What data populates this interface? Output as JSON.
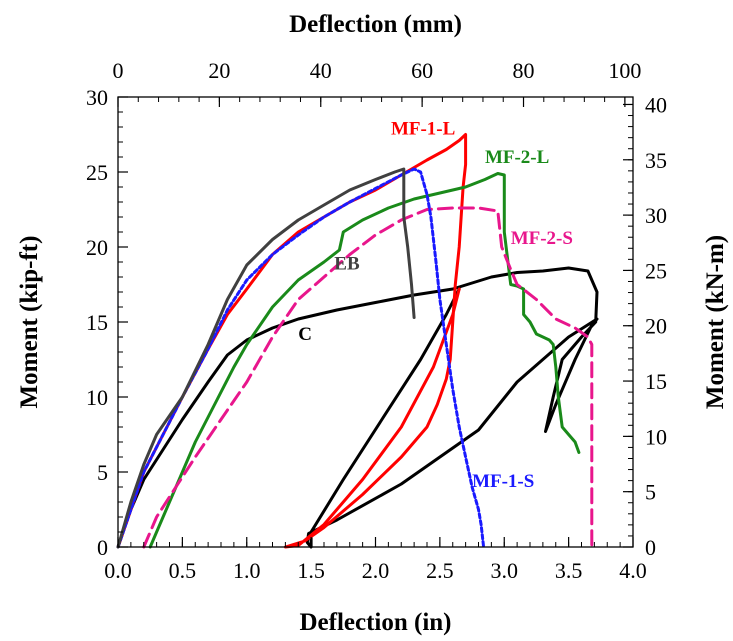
{
  "chart_data": {
    "type": "line",
    "xlabel": "Deflection (in)",
    "x2label": "Deflection (mm)",
    "ylabel": "Moment (kip-ft)",
    "y2label": "Moment (kN-m)",
    "xlim": [
      0,
      4
    ],
    "ylim": [
      0,
      30
    ],
    "x2lim": [
      0,
      101.6
    ],
    "y2lim": [
      0,
      40.675
    ],
    "xticks": [
      0,
      0.5,
      1,
      1.5,
      2,
      2.5,
      3,
      3.5,
      4
    ],
    "xtick_labels": [
      "0.0",
      "0.5",
      "1.0",
      "1.5",
      "2.0",
      "2.5",
      "3.0",
      "3.5",
      "4.0"
    ],
    "yticks": [
      0,
      5,
      10,
      15,
      20,
      25,
      30
    ],
    "ytick_labels": [
      "0",
      "5",
      "10",
      "15",
      "20",
      "25",
      "30"
    ],
    "x2ticks": [
      0,
      20,
      40,
      60,
      80,
      100
    ],
    "x2tick_labels": [
      "0",
      "20",
      "40",
      "60",
      "80",
      "100"
    ],
    "y2ticks": [
      0,
      5,
      10,
      15,
      20,
      25,
      30,
      35,
      40
    ],
    "y2tick_labels": [
      "0",
      "5",
      "10",
      "15",
      "20",
      "25",
      "30",
      "35",
      "40"
    ],
    "grid": false,
    "legend": "none",
    "series": [
      {
        "name": "C",
        "color": "#000000",
        "style": "solid",
        "points": [
          [
            0,
            0
          ],
          [
            0.1,
            2.5
          ],
          [
            0.2,
            4.5
          ],
          [
            0.35,
            6.5
          ],
          [
            0.5,
            8.5
          ],
          [
            0.7,
            11
          ],
          [
            0.85,
            12.8
          ],
          [
            1,
            13.8
          ],
          [
            1.2,
            14.6
          ],
          [
            1.4,
            15.2
          ],
          [
            1.7,
            15.8
          ],
          [
            2,
            16.3
          ],
          [
            2.3,
            16.8
          ],
          [
            2.6,
            17.2
          ],
          [
            2.9,
            18
          ],
          [
            3.1,
            18.3
          ],
          [
            3.3,
            18.4
          ],
          [
            3.5,
            18.6
          ],
          [
            3.65,
            18.4
          ],
          [
            3.72,
            17
          ],
          [
            3.71,
            15
          ],
          [
            3.6,
            14
          ],
          [
            3.45,
            12.5
          ],
          [
            3.38,
            10
          ],
          [
            3.32,
            7.7
          ],
          [
            3.4,
            9.5
          ],
          [
            3.55,
            12.5
          ],
          [
            3.68,
            14.8
          ],
          [
            3.72,
            15.2
          ],
          [
            3.5,
            14
          ],
          [
            3.1,
            11
          ],
          [
            2.8,
            7.8
          ],
          [
            2.2,
            4.2
          ],
          [
            1.7,
            1.8
          ],
          [
            1.48,
            0.9
          ],
          [
            1.47,
            0.3
          ],
          [
            1.5,
            0
          ],
          [
            1.5,
            1
          ],
          [
            1.75,
            4.5
          ],
          [
            2.05,
            8.5
          ],
          [
            2.35,
            12.5
          ],
          [
            2.55,
            15.5
          ],
          [
            2.65,
            17.2
          ]
        ]
      },
      {
        "name": "MF-1-L",
        "color": "#ff0000",
        "style": "solid",
        "points": [
          [
            0,
            0
          ],
          [
            0.1,
            2.5
          ],
          [
            0.2,
            5
          ],
          [
            0.35,
            7.5
          ],
          [
            0.5,
            10
          ],
          [
            0.7,
            13.2
          ],
          [
            0.85,
            15.5
          ],
          [
            1,
            17.2
          ],
          [
            1.2,
            19.5
          ],
          [
            1.4,
            21
          ],
          [
            1.6,
            22
          ],
          [
            1.8,
            23
          ],
          [
            2,
            23.8
          ],
          [
            2.2,
            24.8
          ],
          [
            2.4,
            25.8
          ],
          [
            2.55,
            26.5
          ],
          [
            2.65,
            27.1
          ],
          [
            2.7,
            27.5
          ],
          [
            2.7,
            25.5
          ],
          [
            2.68,
            24
          ],
          [
            2.65,
            20
          ],
          [
            2.62,
            17.5
          ],
          [
            2.58,
            12.5
          ],
          [
            2.55,
            11.2
          ],
          [
            2.48,
            9.5
          ],
          [
            2.4,
            8
          ],
          [
            2.2,
            6
          ],
          [
            1.9,
            3.5
          ],
          [
            1.6,
            1.3
          ],
          [
            1.45,
            0.4
          ],
          [
            1.3,
            0
          ],
          [
            1.4,
            0.1
          ],
          [
            1.6,
            1.5
          ],
          [
            1.9,
            4.5
          ],
          [
            2.2,
            8
          ],
          [
            2.45,
            12
          ],
          [
            2.6,
            15.5
          ],
          [
            2.65,
            17.2
          ]
        ]
      },
      {
        "name": "MF-2-L",
        "color": "#1a8a1a",
        "style": "solid",
        "points": [
          [
            0.25,
            0
          ],
          [
            0.3,
            1
          ],
          [
            0.4,
            3
          ],
          [
            0.5,
            5
          ],
          [
            0.6,
            7
          ],
          [
            0.75,
            9.5
          ],
          [
            0.9,
            12
          ],
          [
            1,
            13.5
          ],
          [
            1.2,
            16
          ],
          [
            1.4,
            17.8
          ],
          [
            1.6,
            19
          ],
          [
            1.72,
            19.8
          ],
          [
            1.75,
            21
          ],
          [
            1.9,
            21.8
          ],
          [
            2.1,
            22.6
          ],
          [
            2.3,
            23.2
          ],
          [
            2.5,
            23.6
          ],
          [
            2.7,
            24
          ],
          [
            2.85,
            24.5
          ],
          [
            2.95,
            24.9
          ],
          [
            3,
            24.8
          ],
          [
            3,
            21
          ],
          [
            3.05,
            17.5
          ],
          [
            3.1,
            17.4
          ],
          [
            3.15,
            17.2
          ],
          [
            3.15,
            15.5
          ],
          [
            3.2,
            15
          ],
          [
            3.25,
            14.2
          ],
          [
            3.3,
            14
          ],
          [
            3.35,
            13.8
          ],
          [
            3.38,
            13.5
          ],
          [
            3.4,
            12
          ],
          [
            3.42,
            10
          ],
          [
            3.45,
            8
          ],
          [
            3.5,
            7.5
          ],
          [
            3.55,
            7
          ],
          [
            3.58,
            6.3
          ]
        ]
      },
      {
        "name": "MF-2-S",
        "color": "#e8168c",
        "style": "dashed",
        "points": [
          [
            0.2,
            0
          ],
          [
            0.3,
            2
          ],
          [
            0.45,
            4
          ],
          [
            0.6,
            6
          ],
          [
            0.8,
            8.5
          ],
          [
            1,
            11
          ],
          [
            1.2,
            14
          ],
          [
            1.4,
            16.5
          ],
          [
            1.6,
            18
          ],
          [
            1.8,
            19.5
          ],
          [
            2,
            20.8
          ],
          [
            2.2,
            21.8
          ],
          [
            2.4,
            22.5
          ],
          [
            2.6,
            22.6
          ],
          [
            2.8,
            22.6
          ],
          [
            2.95,
            22.4
          ],
          [
            2.98,
            20
          ],
          [
            3.05,
            18.5
          ],
          [
            3.1,
            17.5
          ],
          [
            3.25,
            16.5
          ],
          [
            3.4,
            15.2
          ],
          [
            3.55,
            14.6
          ],
          [
            3.65,
            14
          ],
          [
            3.68,
            13.5
          ],
          [
            3.68,
            3
          ],
          [
            3.68,
            0
          ]
        ]
      },
      {
        "name": "MF-1-S",
        "color": "#1a1aff",
        "style": "dotted",
        "points": [
          [
            0,
            0
          ],
          [
            0.1,
            2.5
          ],
          [
            0.2,
            5
          ],
          [
            0.35,
            7.5
          ],
          [
            0.5,
            10
          ],
          [
            0.7,
            13.2
          ],
          [
            0.85,
            15.8
          ],
          [
            1,
            17.8
          ],
          [
            1.2,
            19.5
          ],
          [
            1.4,
            20.8
          ],
          [
            1.6,
            22
          ],
          [
            1.8,
            23
          ],
          [
            2,
            23.9
          ],
          [
            2.2,
            24.8
          ],
          [
            2.3,
            25.2
          ],
          [
            2.35,
            25
          ],
          [
            2.4,
            23.5
          ],
          [
            2.43,
            22
          ],
          [
            2.47,
            19
          ],
          [
            2.5,
            16.5
          ],
          [
            2.55,
            13.5
          ],
          [
            2.6,
            10.5
          ],
          [
            2.65,
            8
          ],
          [
            2.7,
            6
          ],
          [
            2.75,
            4
          ],
          [
            2.8,
            2.5
          ],
          [
            2.82,
            1.5
          ],
          [
            2.84,
            0
          ]
        ]
      },
      {
        "name": "EB",
        "color": "#404040",
        "style": "solid",
        "points": [
          [
            0,
            0
          ],
          [
            0.1,
            3
          ],
          [
            0.2,
            5.5
          ],
          [
            0.3,
            7.5
          ],
          [
            0.5,
            10
          ],
          [
            0.7,
            13.5
          ],
          [
            0.85,
            16.5
          ],
          [
            1,
            18.8
          ],
          [
            1.2,
            20.5
          ],
          [
            1.4,
            21.8
          ],
          [
            1.6,
            22.8
          ],
          [
            1.8,
            23.8
          ],
          [
            2,
            24.5
          ],
          [
            2.15,
            25
          ],
          [
            2.22,
            25.2
          ],
          [
            2.22,
            22
          ],
          [
            2.25,
            20
          ],
          [
            2.28,
            17.5
          ],
          [
            2.3,
            15.3
          ]
        ]
      }
    ],
    "annotations": [
      {
        "text": "MF-1-L",
        "x": 2.12,
        "y": 27.5,
        "color": "#ff0000"
      },
      {
        "text": "MF-2-L",
        "x": 2.85,
        "y": 25.6,
        "color": "#1a8a1a"
      },
      {
        "text": "MF-2-S",
        "x": 3.05,
        "y": 20.2,
        "color": "#e8168c"
      },
      {
        "text": "EB",
        "x": 1.68,
        "y": 18.5,
        "color": "#404040"
      },
      {
        "text": "C",
        "x": 1.4,
        "y": 13.8,
        "color": "#000000"
      },
      {
        "text": "MF-1-S",
        "x": 2.75,
        "y": 4,
        "color": "#1a1aff"
      }
    ]
  }
}
